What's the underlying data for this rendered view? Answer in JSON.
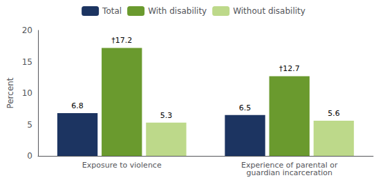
{
  "chart_data": {
    "type": "bar",
    "categories": [
      "Exposure to violence",
      "Experience of parental or\nguardian incarceration"
    ],
    "series": [
      {
        "name": "Total",
        "color": "#1c3461",
        "values": [
          6.8,
          6.5
        ]
      },
      {
        "name": "With disability",
        "color": "#6a9a2e",
        "values": [
          17.2,
          12.7
        ],
        "value_labels": [
          "†17.2",
          "†12.7"
        ]
      },
      {
        "name": "Without disability",
        "color": "#bdd98a",
        "values": [
          5.3,
          5.6
        ]
      }
    ],
    "ylabel": "Percent",
    "ylim": [
      0,
      20
    ],
    "yticks": [
      0,
      5,
      10,
      15,
      20
    ],
    "grid": false,
    "legend": "top",
    "data_labels": true
  }
}
